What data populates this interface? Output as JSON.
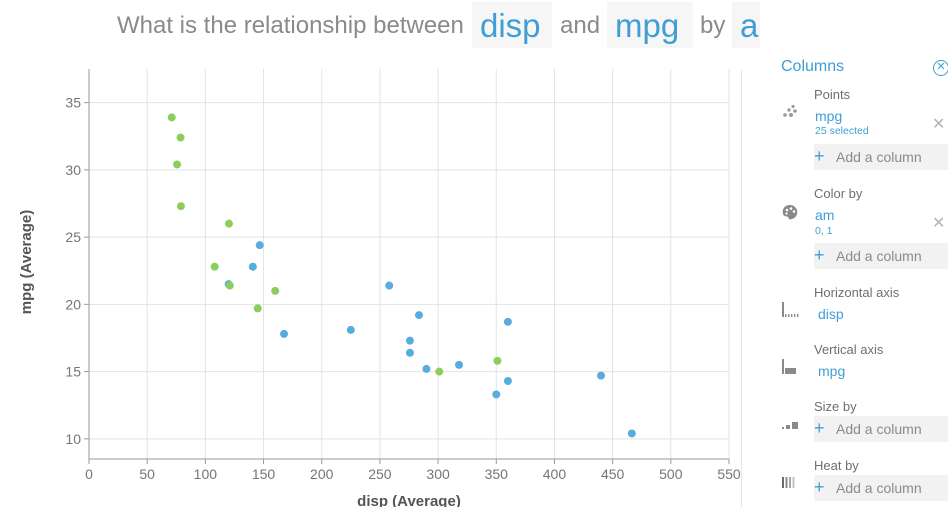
{
  "question": {
    "part1": "What is the relationship between",
    "field1": "disp",
    "part2": "and",
    "field2": "mpg",
    "part3": "by",
    "field3": "am",
    "clear_symbol": "⊗",
    "end": "?"
  },
  "colors": {
    "accent": "#3f9fd4",
    "am_0": "#5aacde",
    "am_1": "#8ccd5c"
  },
  "panel": {
    "title": "Columns",
    "close_symbol": "✕",
    "points": {
      "label": "Points",
      "value": "mpg",
      "sub": "25 selected",
      "remove": "✕",
      "add": "Add a column"
    },
    "color_by": {
      "label": "Color by",
      "value": "am",
      "sub": "0, 1",
      "remove": "✕",
      "add": "Add a column"
    },
    "horizontal_axis": {
      "label": "Horizontal axis",
      "value": "disp"
    },
    "vertical_axis": {
      "label": "Vertical axis",
      "value": "mpg"
    },
    "size_by": {
      "label": "Size by",
      "add": "Add a column"
    },
    "heat_by": {
      "label": "Heat by",
      "add": "Add a column"
    },
    "add_symbol": "+"
  },
  "chart_data": {
    "type": "scatter",
    "xlabel": "disp (Average)",
    "ylabel": "mpg (Average)",
    "xlim": [
      0,
      550
    ],
    "ylim": [
      8.5,
      37.5
    ],
    "xticks": [
      0,
      50,
      100,
      150,
      200,
      250,
      300,
      350,
      400,
      450,
      500,
      550
    ],
    "yticks": [
      10,
      15,
      20,
      25,
      30,
      35
    ],
    "grid": true,
    "legend": "none",
    "series": [
      {
        "color": "#5aacde",
        "points": [
          [
            120,
            21.5
          ],
          [
            140.8,
            22.8
          ],
          [
            146.7,
            24.4
          ],
          [
            167.6,
            17.8
          ],
          [
            225,
            18.1
          ],
          [
            258,
            21.4
          ],
          [
            275.8,
            17.3
          ],
          [
            275.8,
            16.4
          ],
          [
            283.6,
            19.2
          ],
          [
            290,
            15.2
          ],
          [
            318,
            15.5
          ],
          [
            350,
            13.3
          ],
          [
            360,
            14.3
          ],
          [
            360,
            18.7
          ],
          [
            440,
            14.7
          ],
          [
            466.5,
            10.4
          ]
        ]
      },
      {
        "color": "#8ccd5c",
        "points": [
          [
            71.1,
            33.9
          ],
          [
            78.7,
            32.4
          ],
          [
            75.7,
            30.4
          ],
          [
            79,
            27.3
          ],
          [
            120.3,
            26
          ],
          [
            108,
            22.8
          ],
          [
            121,
            21.4
          ],
          [
            160,
            21
          ],
          [
            145,
            19.7
          ],
          [
            351,
            15.8
          ],
          [
            301,
            15
          ]
        ]
      }
    ]
  }
}
